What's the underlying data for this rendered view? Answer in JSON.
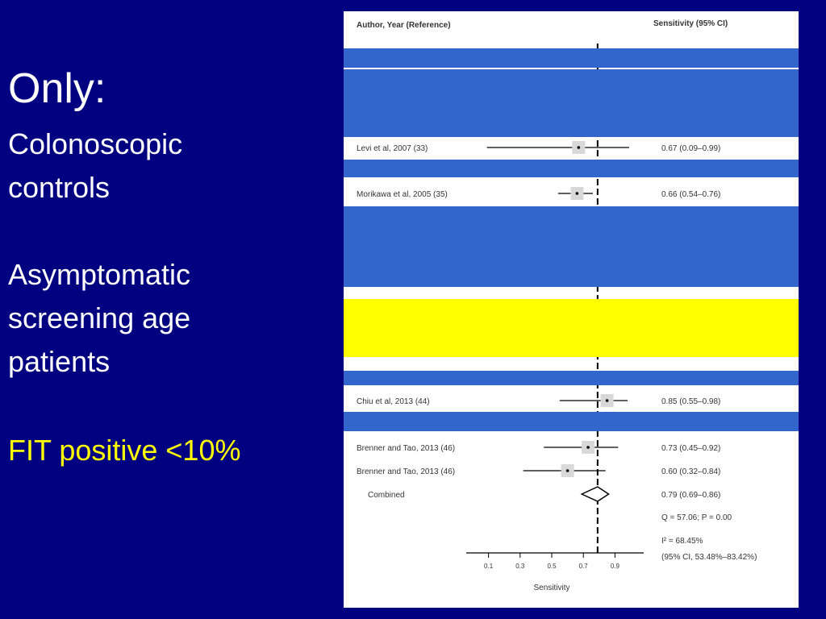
{
  "slide": {
    "title": "Only:",
    "lines": [
      "Colonoscopic",
      "controls",
      "Asymptomatic",
      "screening age",
      "patients"
    ],
    "highlight": "FIT positive <10%"
  },
  "colors": {
    "background": "#000080",
    "body_text": "#ffffff",
    "highlight_text": "#ffff00",
    "overlay_blue": "#3366cc",
    "overlay_yellow": "#ffff00"
  },
  "chart_data": {
    "type": "forest",
    "header_left": "Author, Year (Reference)",
    "header_right": "Sensitivity (95% CI)",
    "studies": [
      {
        "label": "Levi et al, 2007 (33)",
        "estimate": 0.67,
        "ci": [
          0.09,
          0.99
        ],
        "text": "0.67 (0.09–0.99)"
      },
      {
        "label": "Morikawa et al, 2005 (35)",
        "estimate": 0.66,
        "ci": [
          0.54,
          0.76
        ],
        "text": "0.66 (0.54–0.76)"
      },
      {
        "label": "Chiu et al, 2013 (44)",
        "estimate": 0.85,
        "ci": [
          0.55,
          0.98
        ],
        "text": "0.85 (0.55–0.98)"
      },
      {
        "label": "Brenner and Tao, 2013 (46)",
        "estimate": 0.73,
        "ci": [
          0.45,
          0.92
        ],
        "text": "0.73 (0.45–0.92)"
      },
      {
        "label": "Brenner and Tao, 2013 (46)",
        "estimate": 0.6,
        "ci": [
          0.32,
          0.84
        ],
        "text": "0.60 (0.32–0.84)"
      }
    ],
    "combined": {
      "label": "Combined",
      "estimate": 0.79,
      "ci": [
        0.69,
        0.86
      ],
      "text": "0.79 (0.69–0.86)"
    },
    "stats": [
      "Q = 57.06; P = 0.00",
      "I² = 68.45%",
      "(95% CI, 53.48%–83.42%)"
    ],
    "xlabel": "Sensitivity",
    "xticks": [
      0.1,
      0.3,
      0.5,
      0.7,
      0.9
    ],
    "reference_line": 0.79
  }
}
